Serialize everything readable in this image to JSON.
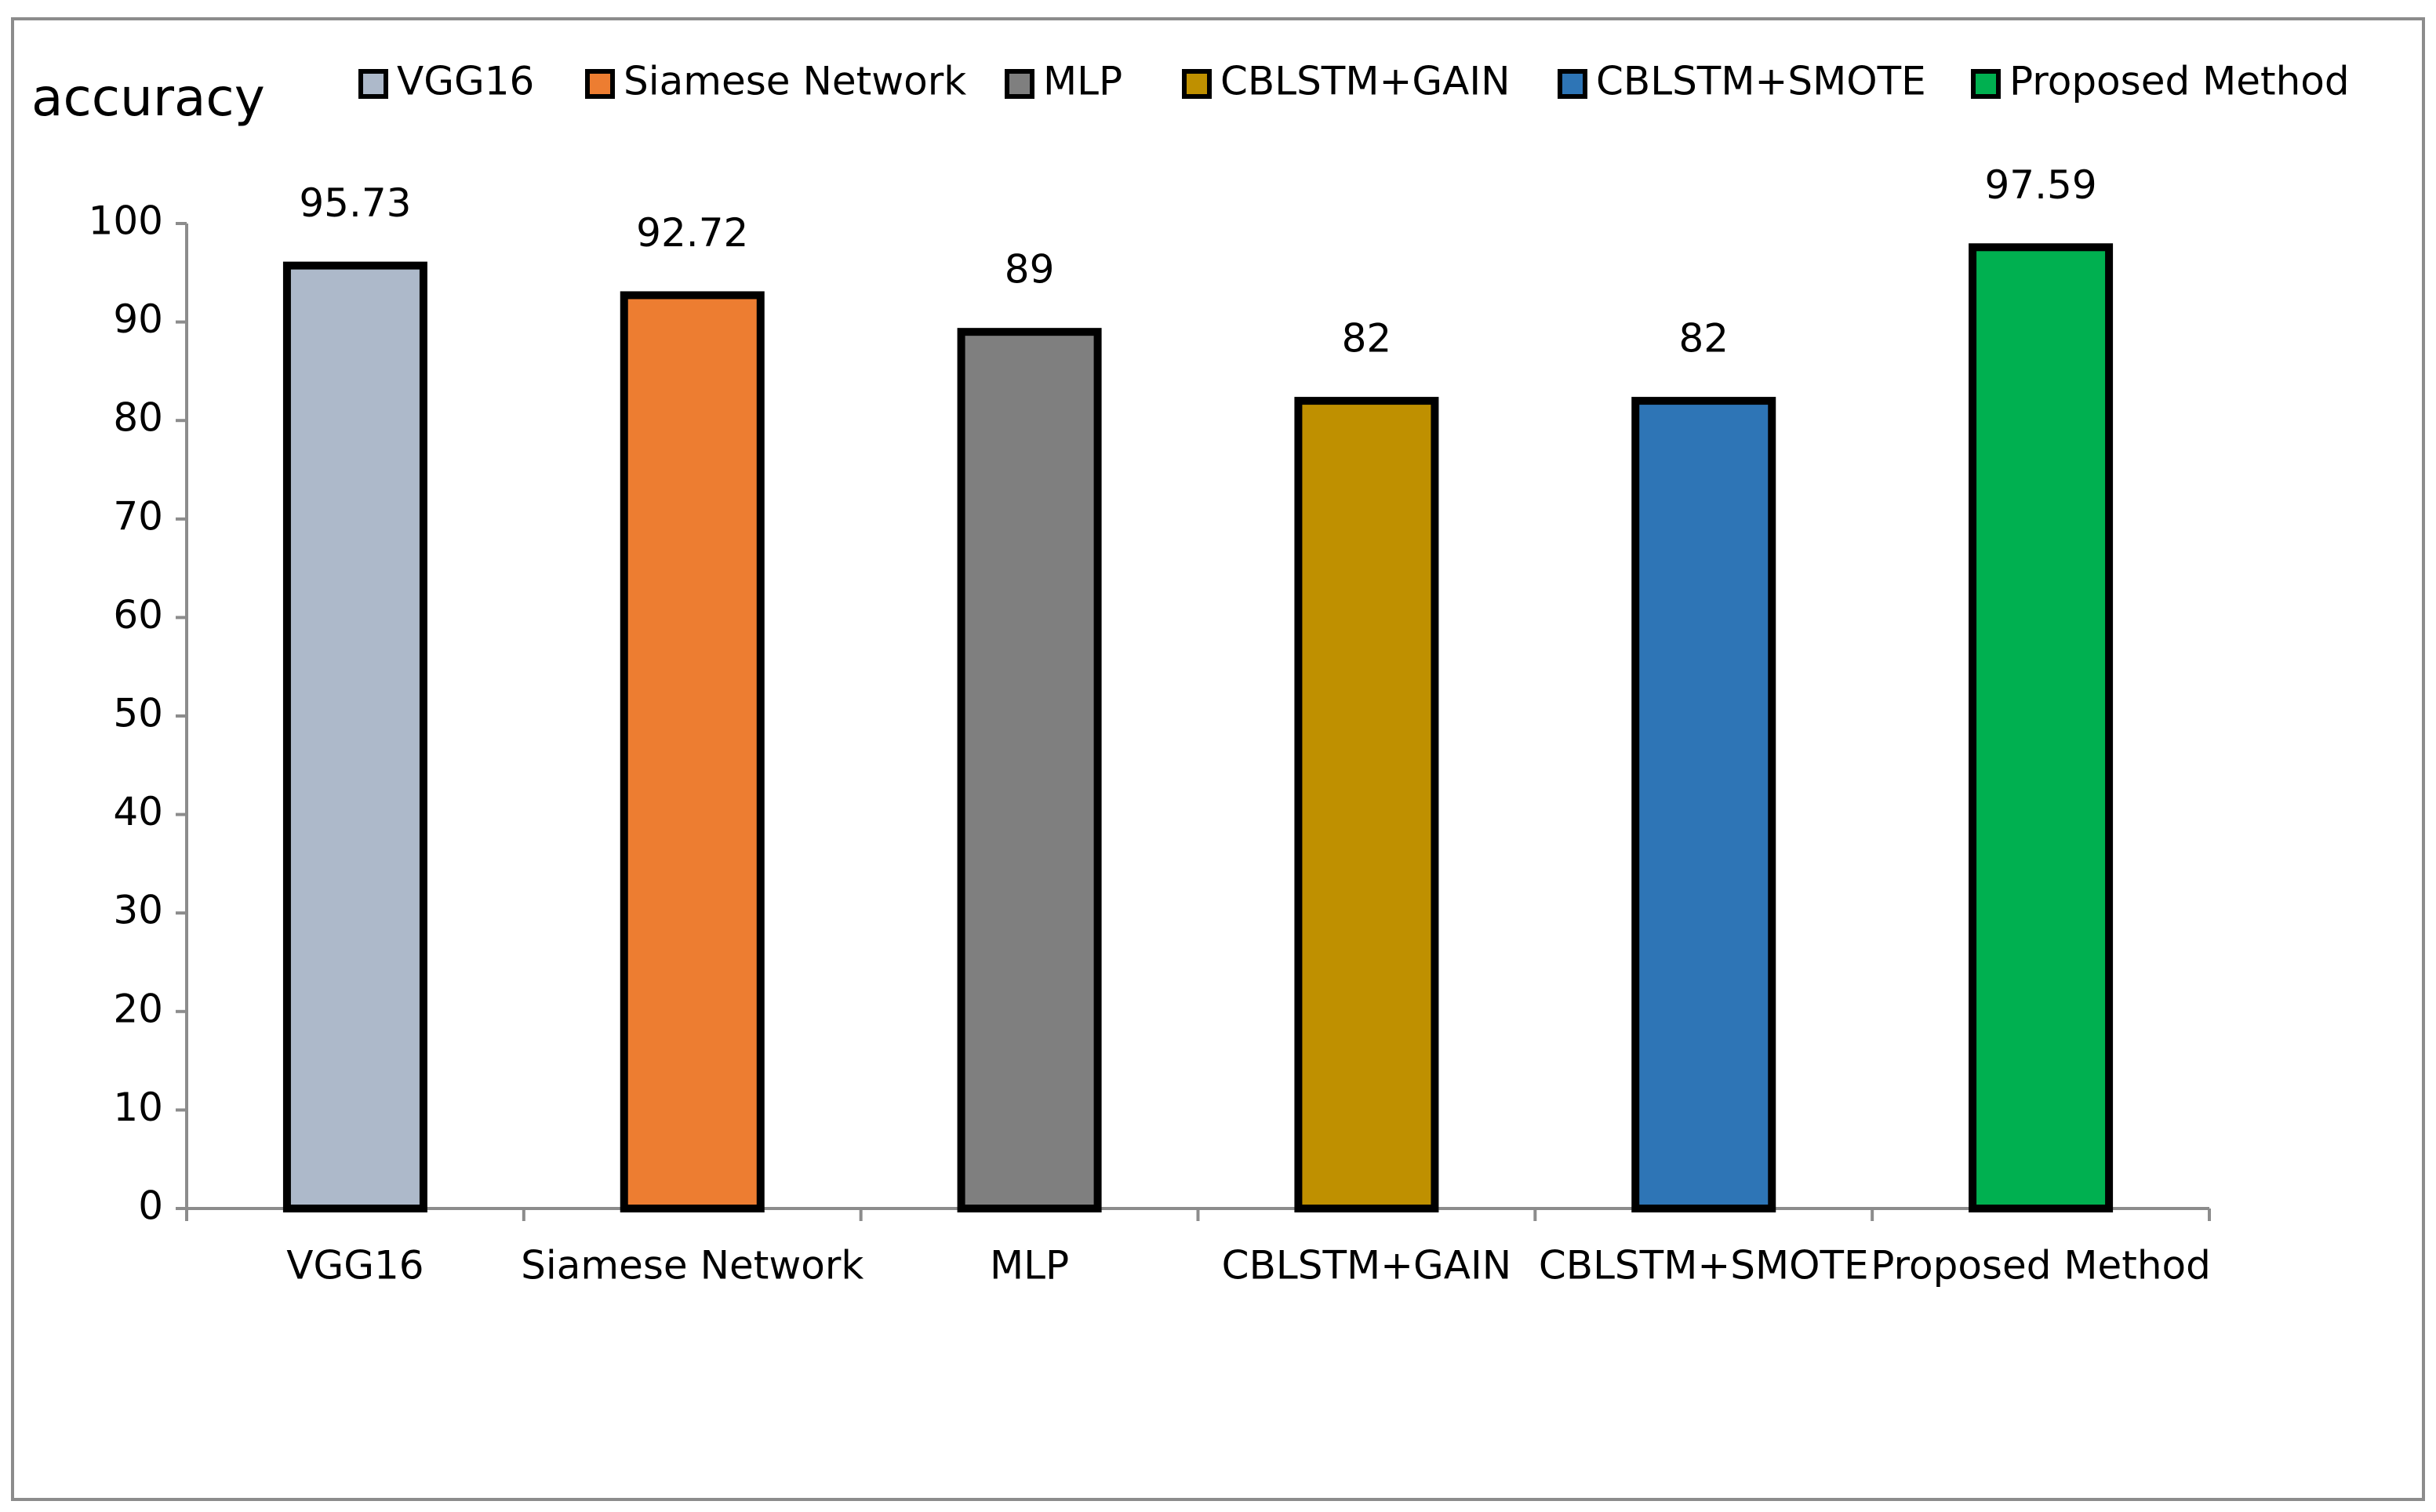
{
  "chart_data": {
    "type": "bar",
    "y_label": "accuracy",
    "categories": [
      "VGG16",
      "Siamese Network",
      "MLP",
      "CBLSTM+GAIN",
      "CBLSTM+SMOTE",
      "Proposed Method"
    ],
    "values": [
      95.73,
      92.72,
      89,
      82,
      82,
      97.59
    ],
    "colors": [
      "#adb9ca",
      "#ed7d31",
      "#7f7f7f",
      "#bf9000",
      "#2e75b6",
      "#00b050"
    ],
    "ylim": [
      0,
      100
    ],
    "yticks": [
      0,
      10,
      20,
      30,
      40,
      50,
      60,
      70,
      80,
      90,
      100
    ],
    "grid": false
  }
}
